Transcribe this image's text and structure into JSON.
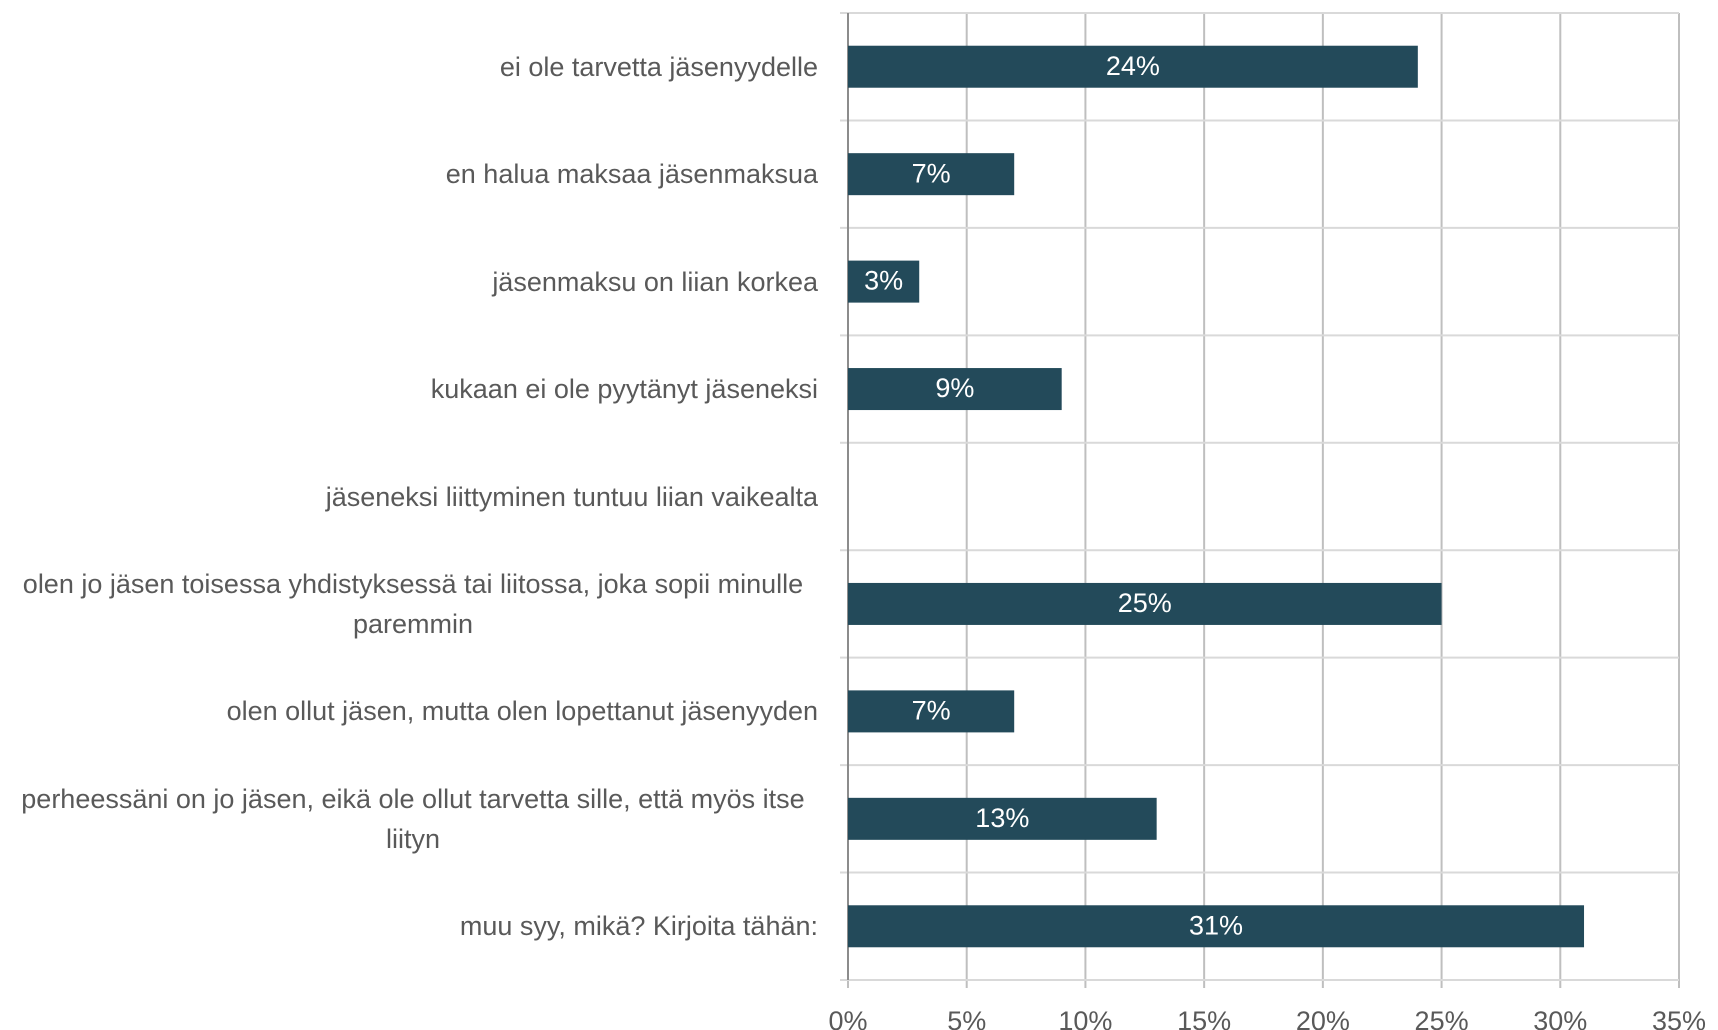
{
  "chart_data": {
    "type": "bar",
    "orientation": "horizontal",
    "categories": [
      "ei ole tarvetta jäsenyydelle",
      "en halua maksaa jäsenmaksua",
      "jäsenmaksu on liian korkea",
      "kukaan ei ole pyytänyt jäseneksi",
      "jäseneksi liittyminen tuntuu liian vaikealta",
      "olen jo jäsen toisessa yhdistyksessä tai liitossa, joka sopii minulle paremmin",
      "olen ollut jäsen, mutta olen lopettanut jäsenyyden",
      "perheessäni on jo jäsen, eikä ole ollut tarvetta sille, että myös itse liityn",
      "muu syy, mikä? Kirjoita tähän:"
    ],
    "values": [
      24,
      7,
      3,
      9,
      0,
      25,
      7,
      13,
      31
    ],
    "value_labels": [
      "24%",
      "7%",
      "3%",
      "9%",
      null,
      "25%",
      "7%",
      "13%",
      "31%"
    ],
    "color": "#234a5a",
    "xlim": [
      0,
      35
    ],
    "xticks": [
      {
        "value": 0,
        "label": "0%"
      },
      {
        "value": 5,
        "label": "5%"
      },
      {
        "value": 10,
        "label": "10%"
      },
      {
        "value": 15,
        "label": "15%"
      },
      {
        "value": 20,
        "label": "20%"
      },
      {
        "value": 25,
        "label": "25%"
      },
      {
        "value": 30,
        "label": "30%"
      },
      {
        "value": 35,
        "label": "35%"
      }
    ],
    "grid": true
  }
}
